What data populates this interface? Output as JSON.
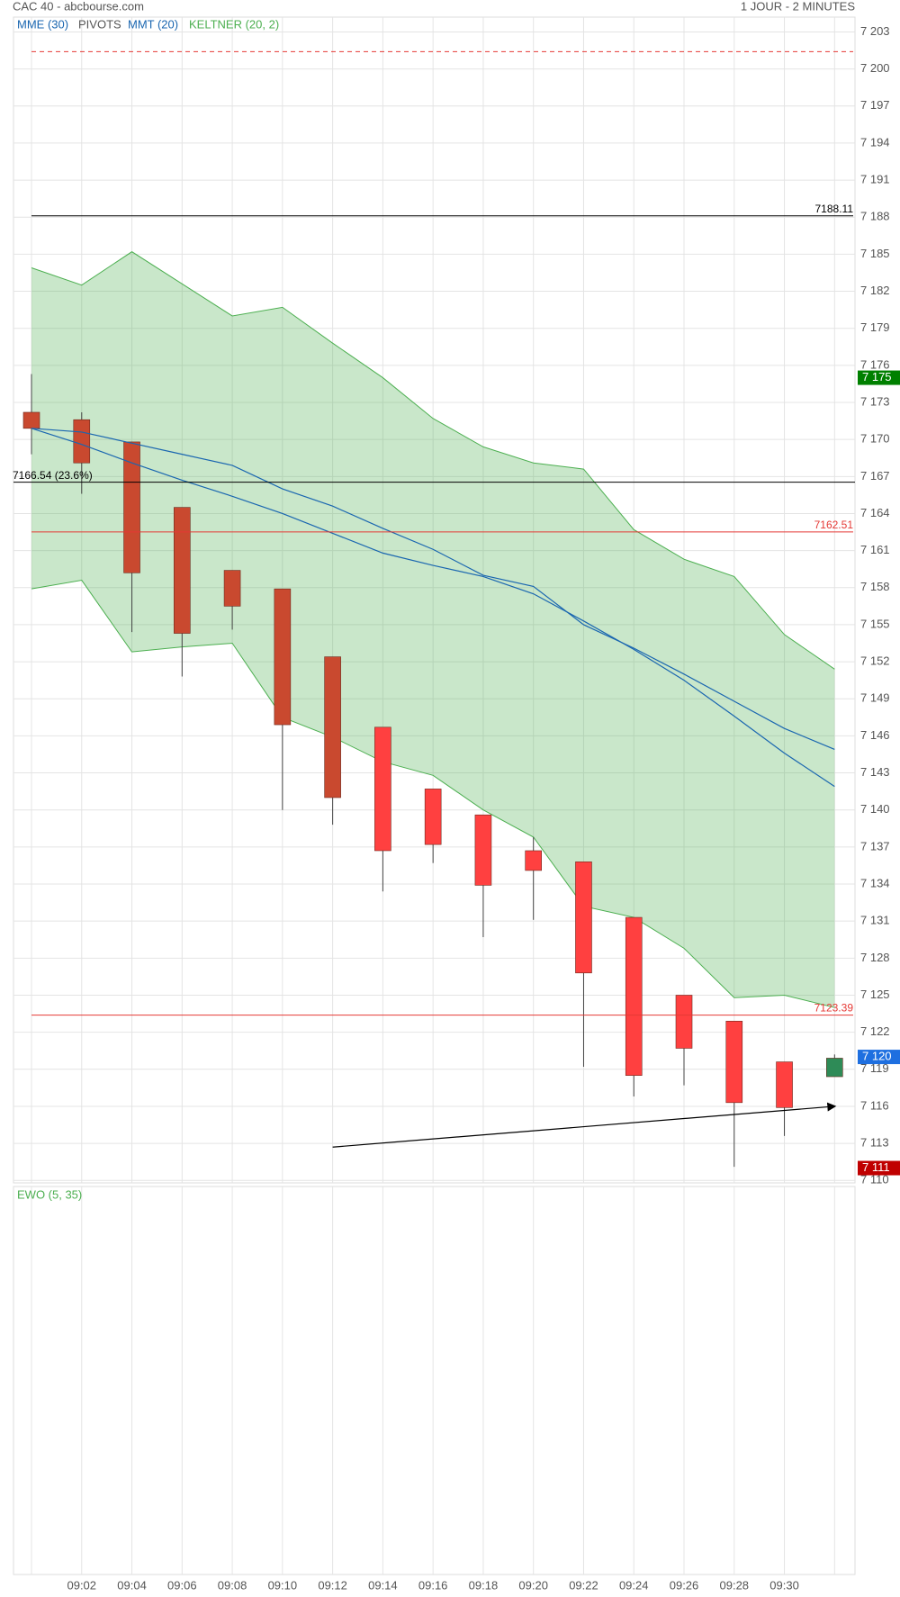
{
  "header": {
    "title": "CAC 40 - abcbourse.com",
    "period": "1 JOUR - 2 MINUTES"
  },
  "chart_data": [
    {
      "type": "candlestick",
      "categories": [
        null,
        "09:02",
        "09:04",
        "09:06",
        "09:08",
        "09:10",
        "09:12",
        "09:14",
        "09:16",
        "09:18",
        "09:20",
        "09:22",
        "09:24",
        "09:26",
        "09:28",
        "09:30",
        null
      ],
      "open": [
        7172.2,
        7171.6,
        7169.8,
        7164.5,
        7159.4,
        7157.9,
        7152.4,
        7146.7,
        7141.7,
        7139.6,
        7136.7,
        7135.8,
        7131.3,
        7125.0,
        7122.9,
        7119.6,
        7118.4
      ],
      "high": [
        7175.3,
        7172.2,
        7169.8,
        7164.5,
        7159.4,
        7157.9,
        7152.4,
        7146.7,
        7141.7,
        7139.6,
        7137.8,
        7135.8,
        7131.3,
        7125.0,
        7122.9,
        7119.6,
        7120.2
      ],
      "low": [
        7168.8,
        7165.6,
        7154.4,
        7150.8,
        7154.6,
        7140.0,
        7138.8,
        7133.4,
        7135.7,
        7129.7,
        7131.1,
        7119.2,
        7116.8,
        7117.7,
        7111.1,
        7113.6,
        7118.4
      ],
      "close": [
        7170.9,
        7168.1,
        7159.2,
        7154.3,
        7156.5,
        7146.9,
        7141.0,
        7136.7,
        7137.2,
        7133.9,
        7135.1,
        7126.8,
        7118.5,
        7120.7,
        7116.3,
        7115.9,
        7119.9
      ],
      "colors": [
        "#c9492f",
        "#c9492f",
        "#c9492f",
        "#c9492f",
        "#c9492f",
        "#c9492f",
        "#c9492f",
        "#ff4040",
        "#ff4040",
        "#ff4040",
        "#ff4040",
        "#ff4040",
        "#ff4040",
        "#ff4040",
        "#ff4040",
        "#ff4040",
        "#2e8b57"
      ],
      "series": [
        {
          "name": "MME (30)",
          "color": "#1a66b0",
          "values": [
            7170.9,
            7170.6,
            7169.7,
            7168.8,
            7167.9,
            7166.0,
            7164.6,
            7162.8,
            7161.1,
            7159.0,
            7158.1,
            7155.0,
            7153.1,
            7151.0,
            7148.8,
            7146.6,
            7144.9
          ]
        },
        {
          "name": "MMT (20)",
          "color": "#1a66b0",
          "values": [
            7170.9,
            7169.6,
            7168.1,
            7166.7,
            7165.4,
            7164.0,
            7162.4,
            7160.8,
            7159.8,
            7158.9,
            7157.5,
            7155.3,
            7153.0,
            7150.5,
            7147.6,
            7144.6,
            7141.9
          ]
        }
      ],
      "keltner": {
        "name": "KELTNER (20, 2)",
        "color": "#4caf50",
        "upper": [
          7183.9,
          7182.5,
          7185.2,
          7182.6,
          7180.0,
          7180.7,
          7177.8,
          7175.0,
          7171.7,
          7169.4,
          7168.1,
          7167.6,
          7162.7,
          7160.3,
          7158.9,
          7154.2,
          7151.4
        ],
        "lower": [
          7157.9,
          7158.6,
          7152.8,
          7153.2,
          7153.5,
          7147.5,
          7145.9,
          7143.9,
          7142.8,
          7140.0,
          7137.8,
          7132.2,
          7131.3,
          7128.8,
          7124.8,
          7125.0,
          7124.0
        ]
      },
      "pivots": {
        "name": "PIVOTS",
        "levels": [
          {
            "value": 7201.4,
            "color": "#e53935",
            "dashed": true,
            "labeled": false
          },
          {
            "value": 7188.11,
            "color": "#000000",
            "label_side": "right"
          },
          {
            "value": 7166.54,
            "label": "7166.54  (23.6%)",
            "color": "#000000",
            "label_side": "left"
          },
          {
            "value": 7162.51,
            "color": "#e53935",
            "label_side": "right"
          },
          {
            "value": 7123.39,
            "color": "#e53935",
            "label_side": "right"
          }
        ]
      },
      "trendline": {
        "values": [
          7112.7,
          7116.0
        ],
        "color": "#000000"
      },
      "markers": [
        {
          "value": 7175,
          "label": "7 175",
          "color": "#008000"
        },
        {
          "value": 7120,
          "label": "7 120",
          "color": "#1e6fe0"
        },
        {
          "value": 7111,
          "label": "7 111",
          "color": "#c00000"
        }
      ],
      "ylim": [
        7109.8,
        7204.2
      ],
      "yticks": [
        {
          "value": 7110,
          "label": "7 110"
        },
        {
          "value": 7113,
          "label": "7 113"
        },
        {
          "value": 7116,
          "label": "7 116"
        },
        {
          "value": 7119,
          "label": "7 119"
        },
        {
          "value": 7122,
          "label": "7 122"
        },
        {
          "value": 7125,
          "label": "7 125"
        },
        {
          "value": 7128,
          "label": "7 128"
        },
        {
          "value": 7131,
          "label": "7 131"
        },
        {
          "value": 7134,
          "label": "7 134"
        },
        {
          "value": 7137,
          "label": "7 137"
        },
        {
          "value": 7140,
          "label": "7 140"
        },
        {
          "value": 7143,
          "label": "7 143"
        },
        {
          "value": 7146,
          "label": "7 146"
        },
        {
          "value": 7149,
          "label": "7 149"
        },
        {
          "value": 7152,
          "label": "7 152"
        },
        {
          "value": 7155,
          "label": "7 155"
        },
        {
          "value": 7158,
          "label": "7 158"
        },
        {
          "value": 7161,
          "label": "7 161"
        },
        {
          "value": 7164,
          "label": "7 164"
        },
        {
          "value": 7167,
          "label": "7 167"
        },
        {
          "value": 7170,
          "label": "7 170"
        },
        {
          "value": 7173,
          "label": "7 173"
        },
        {
          "value": 7176,
          "label": "7 176"
        },
        {
          "value": 7179,
          "label": "7 179"
        },
        {
          "value": 7182,
          "label": "7 182"
        },
        {
          "value": 7185,
          "label": "7 185"
        },
        {
          "value": 7188,
          "label": "7 188"
        },
        {
          "value": 7191,
          "label": "7 191"
        },
        {
          "value": 7194,
          "label": "7 194"
        },
        {
          "value": 7197,
          "label": "7 197"
        },
        {
          "value": 7200,
          "label": "7 200"
        },
        {
          "value": 7203,
          "label": "7 203"
        }
      ],
      "grid": true
    },
    {
      "type": "indicator",
      "title": "EWO (5, 35)",
      "color": "#4caf50"
    }
  ]
}
